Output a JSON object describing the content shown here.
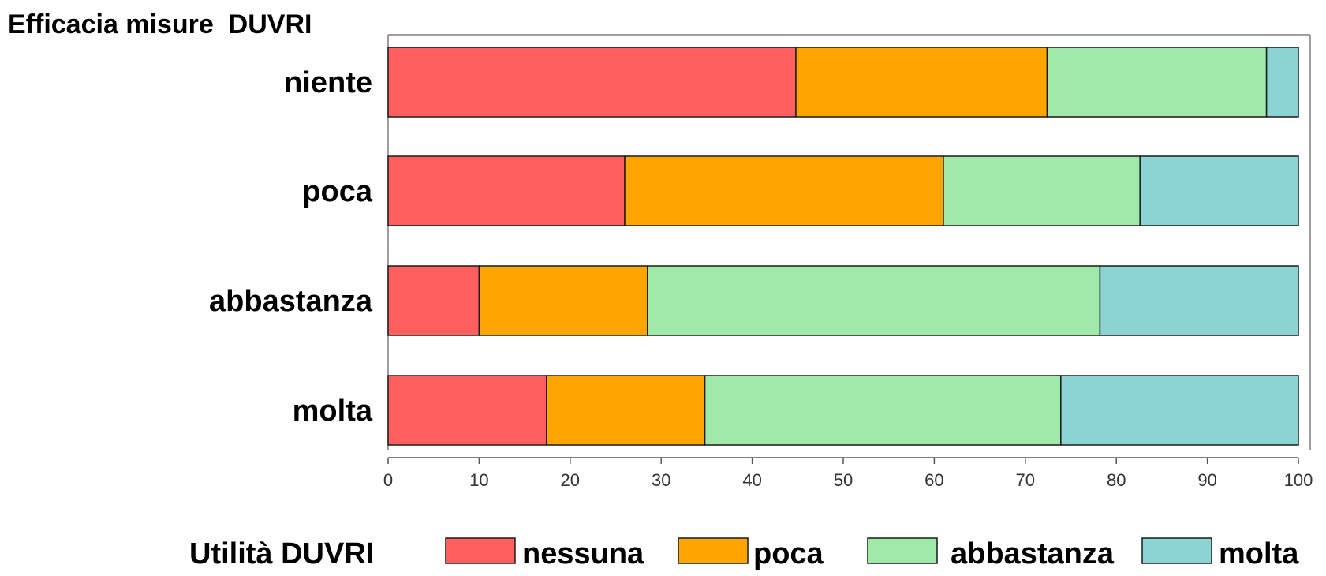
{
  "chart_data": {
    "type": "bar",
    "orientation": "horizontal",
    "stacked": true,
    "title": "Efficacia misure  DUVRI",
    "legend_title": "Utilità DUVRI",
    "legend_position": "bottom",
    "categories": [
      "niente",
      "poca",
      "abbastanza",
      "molta"
    ],
    "series": [
      {
        "name": "nessuna",
        "color": "#ff5f5f",
        "values": [
          44.8,
          26.0,
          10.0,
          17.4
        ]
      },
      {
        "name": "poca",
        "color": "#ffa500",
        "values": [
          27.6,
          35.0,
          18.5,
          17.4
        ]
      },
      {
        "name": "abbastanza",
        "color": "#9ee8a8",
        "values": [
          24.1,
          21.6,
          49.7,
          39.1
        ]
      },
      {
        "name": "molta",
        "color": "#8cd4d4",
        "values": [
          3.5,
          17.4,
          21.8,
          26.1
        ]
      }
    ],
    "xlim": [
      0,
      100
    ],
    "xticks": [
      "0",
      "10",
      "20",
      "30",
      "40",
      "50",
      "60",
      "70",
      "80",
      "90",
      "100"
    ],
    "grid": false
  }
}
